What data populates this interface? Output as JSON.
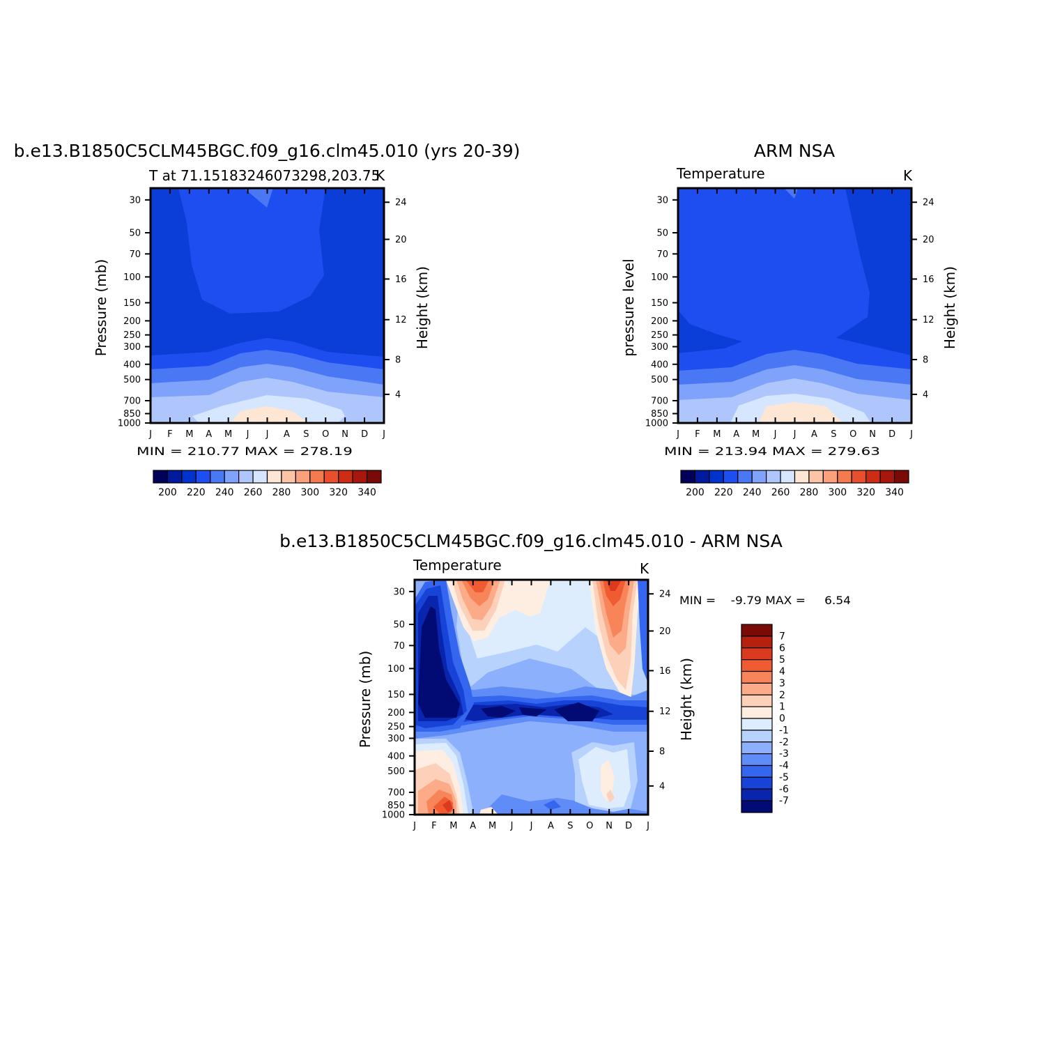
{
  "chart_data": [
    {
      "type": "contour",
      "title": "b.e13.B1850C5CLM45BGC.f09_g16.clm45.010 (yrs 20-39)",
      "subtitle_left": "T at 71.15183246073298,203.75",
      "subtitle_right": "K",
      "xlabel": "",
      "ylabel": "Pressure (mb)",
      "ylabel_right": "Height (km)",
      "x_ticks": [
        "J",
        "F",
        "M",
        "A",
        "M",
        "J",
        "J",
        "A",
        "S",
        "O",
        "N",
        "D",
        "J"
      ],
      "y_ticks": [
        "30",
        "50",
        "70",
        "100",
        "150",
        "200",
        "250",
        "300",
        "400",
        "500",
        "700",
        "850",
        "1000"
      ],
      "y_ticks_right": [
        "24",
        "20",
        "16",
        "12",
        "8",
        "4"
      ],
      "stats_text": "MIN = 210.77 MAX = 278.19",
      "min": 210.77,
      "max": 278.19,
      "units": "K",
      "colorbar": {
        "levels": [
          195,
          200,
          205,
          210,
          215,
          220,
          225,
          230,
          235,
          240,
          245,
          250,
          255,
          260,
          265,
          270,
          275,
          280,
          285,
          290,
          295,
          300,
          305,
          310,
          315,
          320,
          325,
          330,
          335,
          340,
          345
        ],
        "labels": [
          "200",
          "220",
          "240",
          "260",
          "280",
          "300",
          "320",
          "340"
        ],
        "colors": [
          "#00005a",
          "#001a9e",
          "#0033cc",
          "#1f4ef0",
          "#4a78f5",
          "#7fa2fa",
          "#aec6fc",
          "#d6e6fe",
          "#fee6d4",
          "#fdc4a6",
          "#fba07c",
          "#f47a4f",
          "#e8502d",
          "#cc2d14",
          "#a8170d",
          "#7a0a05"
        ]
      }
    },
    {
      "type": "contour",
      "title": "ARM NSA",
      "subtitle_left": "Temperature",
      "subtitle_right": "K",
      "xlabel": "",
      "ylabel": "pressure level",
      "ylabel_right": "Height (km)",
      "x_ticks": [
        "J",
        "F",
        "M",
        "A",
        "M",
        "J",
        "J",
        "A",
        "S",
        "O",
        "N",
        "D",
        "J"
      ],
      "y_ticks": [
        "30",
        "50",
        "70",
        "100",
        "150",
        "200",
        "250",
        "300",
        "400",
        "500",
        "700",
        "850",
        "1000"
      ],
      "y_ticks_right": [
        "24",
        "20",
        "16",
        "12",
        "8",
        "4"
      ],
      "stats_text": "MIN = 213.94 MAX = 279.63",
      "min": 213.94,
      "max": 279.63,
      "units": "K",
      "colorbar": {
        "labels": [
          "200",
          "220",
          "240",
          "260",
          "280",
          "300",
          "320",
          "340"
        ],
        "colors": [
          "#00005a",
          "#001a9e",
          "#0033cc",
          "#1f4ef0",
          "#4a78f5",
          "#7fa2fa",
          "#aec6fc",
          "#d6e6fe",
          "#fee6d4",
          "#fdc4a6",
          "#fba07c",
          "#f47a4f",
          "#e8502d",
          "#cc2d14",
          "#a8170d",
          "#7a0a05"
        ]
      }
    },
    {
      "type": "contour",
      "title": "b.e13.B1850C5CLM45BGC.f09_g16.clm45.010 - ARM NSA",
      "subtitle_left": "Temperature",
      "subtitle_right": "K",
      "xlabel": "",
      "ylabel": "Pressure (mb)",
      "ylabel_right": "Height (km)",
      "x_ticks": [
        "J",
        "F",
        "M",
        "A",
        "M",
        "J",
        "J",
        "A",
        "S",
        "O",
        "N",
        "D",
        "J"
      ],
      "y_ticks": [
        "30",
        "50",
        "70",
        "100",
        "150",
        "200",
        "250",
        "300",
        "400",
        "500",
        "700",
        "850",
        "1000"
      ],
      "y_ticks_right": [
        "24",
        "20",
        "16",
        "12",
        "8",
        "4"
      ],
      "stats_text": "MIN =    -9.79 MAX =     6.54",
      "min": -9.79,
      "max": 6.54,
      "units": "K",
      "colorbar": {
        "labels": [
          "7",
          "6",
          "5",
          "4",
          "3",
          "2",
          "1",
          "0",
          "-1",
          "-2",
          "-3",
          "-4",
          "-5",
          "-6",
          "-7"
        ],
        "colors": [
          "#7a0a05",
          "#b5200f",
          "#dc3a1e",
          "#f05b32",
          "#f8855a",
          "#fcab89",
          "#fdd1b9",
          "#feeee2",
          "#deedfe",
          "#b7d2fd",
          "#8cb0fb",
          "#5f8cf7",
          "#3466f0",
          "#1744d6",
          "#0a25ad",
          "#020a73"
        ]
      }
    }
  ]
}
